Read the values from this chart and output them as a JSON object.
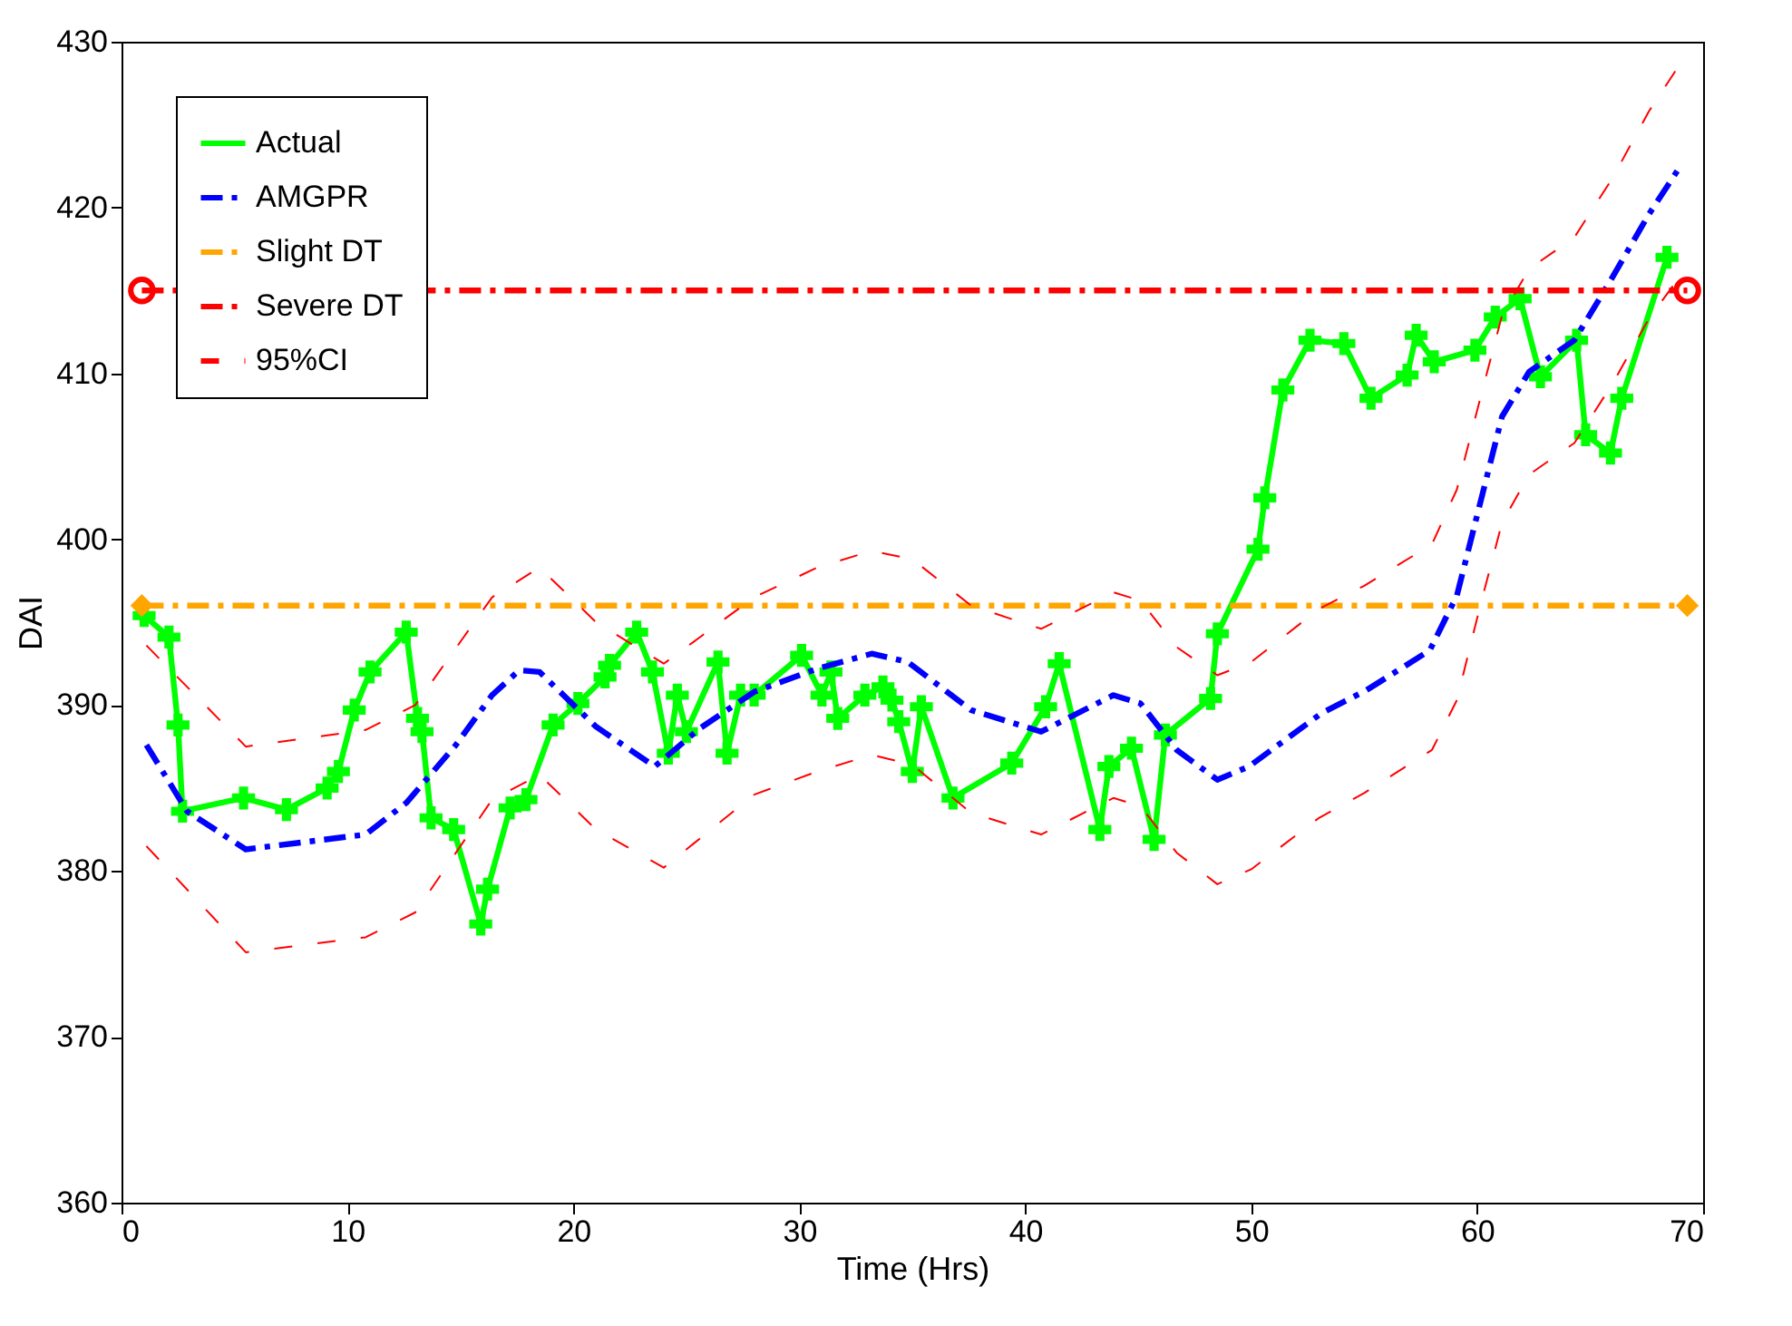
{
  "chart_data": {
    "type": "line",
    "xlabel": "Time (Hrs)",
    "ylabel": "DAI",
    "xlim": [
      0,
      70
    ],
    "xticks": [
      0,
      10,
      20,
      30,
      40,
      50,
      60,
      70
    ],
    "ylim": [
      360,
      430
    ],
    "yticks": [
      360,
      370,
      380,
      390,
      400,
      410,
      420,
      430
    ],
    "grid": false,
    "legend": "top left",
    "series": [
      {
        "name": "Actual",
        "color": "#00ff00",
        "marker": "cross",
        "line_style": "solid",
        "x": [
          1.0,
          2.1,
          2.5,
          2.7,
          5.4,
          7.3,
          9.1,
          9.6,
          10.3,
          11.0,
          12.6,
          13.1,
          13.3,
          13.7,
          14.7,
          15.9,
          16.2,
          17.2,
          17.9,
          19.1,
          20.2,
          21.4,
          21.6,
          22.8,
          23.5,
          24.2,
          24.6,
          25.0,
          26.4,
          26.8,
          27.4,
          28.0,
          30.1,
          31.0,
          31.4,
          31.7,
          32.9,
          33.7,
          34.1,
          34.4,
          35.0,
          35.4,
          36.8,
          39.4,
          40.9,
          41.5,
          43.3,
          43.7,
          44.7,
          45.7,
          46.2,
          48.2,
          48.5,
          50.3,
          50.6,
          51.4,
          52.6,
          54.1,
          55.3,
          56.9,
          57.3,
          58.1,
          59.9,
          60.8,
          61.9,
          62.8,
          64.4,
          64.8,
          65.9,
          66.4,
          68.4
        ],
        "values": [
          395.4,
          394.1,
          388.8,
          383.6,
          384.4,
          383.7,
          385.0,
          386.0,
          389.7,
          392.0,
          394.4,
          389.2,
          388.4,
          383.2,
          382.5,
          376.8,
          378.9,
          383.8,
          384.3,
          388.8,
          390.1,
          391.7,
          392.4,
          394.4,
          392.0,
          387.1,
          390.6,
          388.4,
          392.6,
          387.1,
          390.6,
          390.6,
          393.0,
          390.6,
          392.0,
          389.2,
          390.6,
          391.1,
          390.3,
          389.0,
          386.0,
          389.9,
          384.4,
          386.5,
          389.9,
          392.5,
          382.5,
          386.3,
          387.4,
          381.9,
          388.2,
          390.4,
          394.3,
          399.4,
          402.5,
          409.0,
          412.0,
          411.8,
          408.5,
          409.9,
          412.3,
          410.7,
          411.4,
          413.4,
          414.5,
          409.8,
          412.0,
          406.3,
          405.2,
          408.5,
          417.0
        ]
      },
      {
        "name": "AMGPR",
        "color": "#0000ff",
        "line_style": "dashdot",
        "x": [
          1.1,
          2.9,
          5.5,
          10.8,
          12.6,
          14.8,
          16.4,
          17.6,
          18.5,
          21.0,
          23.6,
          25.6,
          28.0,
          30.8,
          33.2,
          34.8,
          37.6,
          40.7,
          43.9,
          45.1,
          46.7,
          48.5,
          49.9,
          53.1,
          55.1,
          57.9,
          59.1,
          60.1,
          61.1,
          62.3,
          64.3,
          65.9,
          67.6,
          68.9
        ],
        "values": [
          387.6,
          383.6,
          381.3,
          382.2,
          384.1,
          387.6,
          390.6,
          392.1,
          392.0,
          388.7,
          386.3,
          388.6,
          390.8,
          392.2,
          393.1,
          392.6,
          389.7,
          388.4,
          390.6,
          390.1,
          387.3,
          385.5,
          386.3,
          389.5,
          390.9,
          393.3,
          396.6,
          402.0,
          407.4,
          410.1,
          412.0,
          415.6,
          419.6,
          422.3
        ]
      },
      {
        "name": "Slight DT",
        "color": "#ffa500",
        "marker": "diamond",
        "line_style": "dashdot",
        "x": [
          0.9,
          69.3
        ],
        "values": [
          396,
          396
        ]
      },
      {
        "name": "Severe DT",
        "color": "#ff0000",
        "marker": "circle",
        "line_style": "dashdot",
        "x": [
          0.9,
          69.3
        ],
        "values": [
          415,
          415
        ]
      },
      {
        "name": "95%CI",
        "color": "#ff0000",
        "line_style": "dashed",
        "x": [
          1.1,
          5.5,
          10.8,
          13.0,
          16.4,
          18.5,
          21.0,
          24.0,
          28.0,
          30.8,
          33.2,
          35.0,
          37.6,
          40.7,
          43.9,
          45.1,
          46.7,
          48.5,
          50.0,
          53.0,
          55.0,
          58.0,
          59.1,
          60.1,
          61.1,
          62.3,
          64.3,
          66.0,
          67.6,
          69.0
        ],
        "values": [
          393.6,
          387.5,
          388.5,
          390.0,
          396.5,
          398.3,
          395.0,
          392.5,
          396.5,
          398.3,
          399.3,
          398.8,
          396.0,
          394.6,
          396.8,
          396.3,
          393.5,
          391.8,
          392.6,
          395.8,
          397.2,
          399.7,
          403.0,
          408.3,
          413.5,
          416.3,
          418.2,
          421.8,
          425.8,
          428.7
        ]
      },
      {
        "color": "#ff0000",
        "line_style": "dashed",
        "x": [
          1.1,
          5.5,
          10.8,
          13.0,
          16.4,
          18.5,
          21.0,
          24.0,
          28.0,
          30.8,
          33.2,
          35.0,
          37.6,
          40.7,
          43.9,
          45.1,
          46.7,
          48.5,
          50.0,
          53.0,
          55.0,
          58.0,
          59.1,
          60.1,
          61.1,
          62.3,
          64.3,
          66.0,
          67.6,
          69.0
        ],
        "values": [
          381.5,
          375.1,
          376.0,
          377.5,
          384.3,
          385.8,
          382.5,
          380.2,
          384.6,
          386.0,
          387.0,
          386.4,
          383.5,
          382.2,
          384.4,
          383.9,
          381.1,
          379.2,
          380.1,
          383.2,
          384.7,
          387.3,
          390.3,
          395.8,
          401.0,
          403.9,
          405.8,
          409.4,
          413.3,
          415.9
        ]
      }
    ]
  }
}
